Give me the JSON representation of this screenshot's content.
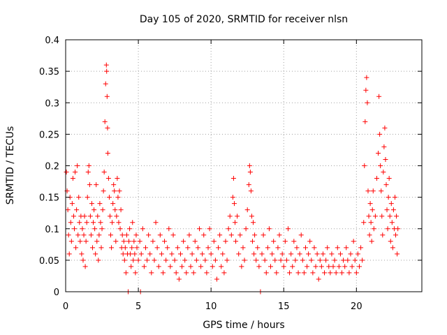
{
  "chart_data": {
    "type": "scatter",
    "title": "Day 105 of 2020, SRMTID for receiver nlsn",
    "xlabel": "GPS time / hours",
    "ylabel": "SRMTID / TECUs",
    "xlim": [
      0,
      24.5
    ],
    "ylim": [
      0,
      0.4
    ],
    "xticks": [
      0,
      5,
      10,
      15,
      20
    ],
    "xtick_labels": [
      "0",
      "5",
      "10",
      "15",
      "20"
    ],
    "yticks": [
      0,
      0.05,
      0.1,
      0.15,
      0.2,
      0.25,
      0.3,
      0.35,
      0.4
    ],
    "ytick_labels": [
      "0",
      "0.05",
      "0.1",
      "0.15",
      "0.2",
      "0.25",
      "0.3",
      "0.35",
      "0.4"
    ],
    "grid": true,
    "marker": "+",
    "color": "#ff0000",
    "series": [
      {
        "name": "SRMTID",
        "points": [
          [
            0.05,
            0.19
          ],
          [
            0.1,
            0.16
          ],
          [
            0.15,
            0.13
          ],
          [
            0.2,
            0.09
          ],
          [
            0.25,
            0.06
          ],
          [
            0.3,
            0.15
          ],
          [
            0.35,
            0.11
          ],
          [
            0.4,
            0.08
          ],
          [
            0.45,
            0.14
          ],
          [
            0.5,
            0.18
          ],
          [
            0.55,
            0.12
          ],
          [
            0.6,
            0.1
          ],
          [
            0.65,
            0.19
          ],
          [
            0.7,
            0.07
          ],
          [
            0.75,
            0.13
          ],
          [
            0.8,
            0.2
          ],
          [
            0.85,
            0.09
          ],
          [
            0.9,
            0.15
          ],
          [
            0.95,
            0.11
          ],
          [
            1.0,
            0.08
          ],
          [
            1.05,
            0.12
          ],
          [
            1.1,
            0.06
          ],
          [
            1.15,
            0.1
          ],
          [
            1.2,
            0.05
          ],
          [
            1.25,
            0.09
          ],
          [
            1.3,
            0.12
          ],
          [
            1.35,
            0.04
          ],
          [
            1.4,
            0.08
          ],
          [
            1.45,
            0.11
          ],
          [
            1.5,
            0.15
          ],
          [
            1.55,
            0.19
          ],
          [
            1.6,
            0.2
          ],
          [
            1.65,
            0.17
          ],
          [
            1.7,
            0.12
          ],
          [
            1.75,
            0.09
          ],
          [
            1.8,
            0.14
          ],
          [
            1.85,
            0.07
          ],
          [
            1.9,
            0.11
          ],
          [
            1.95,
            0.13
          ],
          [
            2.0,
            0.1
          ],
          [
            2.05,
            0.06
          ],
          [
            2.1,
            0.17
          ],
          [
            2.15,
            0.08
          ],
          [
            2.2,
            0.12
          ],
          [
            2.25,
            0.05
          ],
          [
            2.3,
            0.09
          ],
          [
            2.35,
            0.14
          ],
          [
            2.4,
            0.11
          ],
          [
            2.45,
            0.07
          ],
          [
            2.5,
            0.1
          ],
          [
            2.55,
            0.13
          ],
          [
            2.6,
            0.16
          ],
          [
            2.65,
            0.19
          ],
          [
            2.7,
            0.27
          ],
          [
            2.75,
            0.33
          ],
          [
            2.8,
            0.36
          ],
          [
            2.82,
            0.35
          ],
          [
            2.85,
            0.31
          ],
          [
            2.88,
            0.26
          ],
          [
            2.9,
            0.22
          ],
          [
            2.95,
            0.18
          ],
          [
            3.0,
            0.15
          ],
          [
            3.05,
            0.12
          ],
          [
            3.1,
            0.09
          ],
          [
            3.15,
            0.07
          ],
          [
            3.2,
            0.11
          ],
          [
            3.25,
            0.14
          ],
          [
            3.3,
            0.17
          ],
          [
            3.35,
            0.16
          ],
          [
            3.4,
            0.13
          ],
          [
            3.45,
            0.08
          ],
          [
            3.5,
            0.12
          ],
          [
            3.55,
            0.18
          ],
          [
            3.6,
            0.15
          ],
          [
            3.65,
            0.11
          ],
          [
            3.7,
            0.16
          ],
          [
            3.75,
            0.1
          ],
          [
            3.8,
            0.13
          ],
          [
            3.85,
            0.07
          ],
          [
            3.9,
            0.09
          ],
          [
            3.95,
            0.06
          ],
          [
            4.0,
            0.08
          ],
          [
            4.05,
            0.05
          ],
          [
            4.1,
            0.07
          ],
          [
            4.15,
            0.03
          ],
          [
            4.2,
            0.09
          ],
          [
            4.25,
            0.06
          ],
          [
            4.3,
            0.0
          ],
          [
            4.35,
            0.08
          ],
          [
            4.4,
            0.1
          ],
          [
            4.45,
            0.06
          ],
          [
            4.5,
            0.04
          ],
          [
            4.55,
            0.07
          ],
          [
            4.6,
            0.11
          ],
          [
            4.65,
            0.05
          ],
          [
            4.7,
            0.08
          ],
          [
            4.75,
            0.06
          ],
          [
            4.8,
            0.03
          ],
          [
            4.85,
            0.09
          ],
          [
            4.9,
            0.07
          ],
          [
            5.0,
            0.05
          ],
          [
            5.1,
            0.08
          ],
          [
            5.15,
            0.0
          ],
          [
            5.2,
            0.06
          ],
          [
            5.3,
            0.1
          ],
          [
            5.4,
            0.04
          ],
          [
            5.5,
            0.07
          ],
          [
            5.6,
            0.05
          ],
          [
            5.7,
            0.09
          ],
          [
            5.8,
            0.06
          ],
          [
            5.9,
            0.03
          ],
          [
            6.0,
            0.08
          ],
          [
            6.1,
            0.05
          ],
          [
            6.2,
            0.11
          ],
          [
            6.3,
            0.07
          ],
          [
            6.4,
            0.04
          ],
          [
            6.5,
            0.09
          ],
          [
            6.6,
            0.06
          ],
          [
            6.7,
            0.03
          ],
          [
            6.8,
            0.08
          ],
          [
            6.9,
            0.05
          ],
          [
            7.0,
            0.07
          ],
          [
            7.1,
            0.1
          ],
          [
            7.2,
            0.04
          ],
          [
            7.3,
            0.06
          ],
          [
            7.4,
            0.09
          ],
          [
            7.5,
            0.05
          ],
          [
            7.6,
            0.03
          ],
          [
            7.7,
            0.07
          ],
          [
            7.8,
            0.02
          ],
          [
            7.9,
            0.06
          ],
          [
            8.0,
            0.04
          ],
          [
            8.1,
            0.08
          ],
          [
            8.2,
            0.05
          ],
          [
            8.3,
            0.03
          ],
          [
            8.4,
            0.07
          ],
          [
            8.5,
            0.09
          ],
          [
            8.6,
            0.04
          ],
          [
            8.7,
            0.06
          ],
          [
            8.8,
            0.03
          ],
          [
            8.9,
            0.08
          ],
          [
            9.0,
            0.05
          ],
          [
            9.1,
            0.07
          ],
          [
            9.2,
            0.1
          ],
          [
            9.3,
            0.04
          ],
          [
            9.4,
            0.06
          ],
          [
            9.5,
            0.09
          ],
          [
            9.6,
            0.05
          ],
          [
            9.7,
            0.03
          ],
          [
            9.8,
            0.07
          ],
          [
            9.9,
            0.1
          ],
          [
            10.0,
            0.06
          ],
          [
            10.1,
            0.04
          ],
          [
            10.2,
            0.08
          ],
          [
            10.3,
            0.05
          ],
          [
            10.4,
            0.02
          ],
          [
            10.5,
            0.07
          ],
          [
            10.6,
            0.09
          ],
          [
            10.7,
            0.04
          ],
          [
            10.8,
            0.06
          ],
          [
            10.9,
            0.03
          ],
          [
            11.0,
            0.08
          ],
          [
            11.1,
            0.05
          ],
          [
            11.2,
            0.1
          ],
          [
            11.3,
            0.12
          ],
          [
            11.4,
            0.09
          ],
          [
            11.5,
            0.15
          ],
          [
            11.55,
            0.18
          ],
          [
            11.6,
            0.14
          ],
          [
            11.65,
            0.11
          ],
          [
            11.7,
            0.08
          ],
          [
            11.8,
            0.12
          ],
          [
            11.9,
            0.06
          ],
          [
            12.0,
            0.09
          ],
          [
            12.1,
            0.04
          ],
          [
            12.2,
            0.07
          ],
          [
            12.3,
            0.05
          ],
          [
            12.4,
            0.1
          ],
          [
            12.5,
            0.13
          ],
          [
            12.6,
            0.17
          ],
          [
            12.65,
            0.2
          ],
          [
            12.7,
            0.19
          ],
          [
            12.75,
            0.16
          ],
          [
            12.8,
            0.12
          ],
          [
            12.85,
            0.08
          ],
          [
            12.9,
            0.11
          ],
          [
            12.95,
            0.06
          ],
          [
            13.0,
            0.09
          ],
          [
            13.1,
            0.05
          ],
          [
            13.2,
            0.07
          ],
          [
            13.3,
            0.04
          ],
          [
            13.4,
            0.0
          ],
          [
            13.5,
            0.06
          ],
          [
            13.6,
            0.09
          ],
          [
            13.7,
            0.05
          ],
          [
            13.8,
            0.03
          ],
          [
            13.9,
            0.07
          ],
          [
            14.0,
            0.1
          ],
          [
            14.1,
            0.04
          ],
          [
            14.2,
            0.06
          ],
          [
            14.3,
            0.08
          ],
          [
            14.4,
            0.05
          ],
          [
            14.5,
            0.03
          ],
          [
            14.6,
            0.07
          ],
          [
            14.7,
            0.09
          ],
          [
            14.8,
            0.05
          ],
          [
            14.9,
            0.06
          ],
          [
            15.0,
            0.04
          ],
          [
            15.1,
            0.08
          ],
          [
            15.2,
            0.05
          ],
          [
            15.3,
            0.1
          ],
          [
            15.4,
            0.03
          ],
          [
            15.5,
            0.06
          ],
          [
            15.6,
            0.04
          ],
          [
            15.7,
            0.08
          ],
          [
            15.8,
            0.05
          ],
          [
            15.9,
            0.07
          ],
          [
            16.0,
            0.03
          ],
          [
            16.1,
            0.06
          ],
          [
            16.2,
            0.09
          ],
          [
            16.3,
            0.05
          ],
          [
            16.4,
            0.03
          ],
          [
            16.5,
            0.07
          ],
          [
            16.6,
            0.04
          ],
          [
            16.7,
            0.06
          ],
          [
            16.8,
            0.08
          ],
          [
            16.9,
            0.05
          ],
          [
            17.0,
            0.03
          ],
          [
            17.1,
            0.07
          ],
          [
            17.2,
            0.04
          ],
          [
            17.3,
            0.06
          ],
          [
            17.4,
            0.02
          ],
          [
            17.5,
            0.05
          ],
          [
            17.6,
            0.04
          ],
          [
            17.7,
            0.06
          ],
          [
            17.8,
            0.03
          ],
          [
            17.9,
            0.05
          ],
          [
            18.0,
            0.07
          ],
          [
            18.1,
            0.04
          ],
          [
            18.2,
            0.03
          ],
          [
            18.3,
            0.06
          ],
          [
            18.4,
            0.04
          ],
          [
            18.5,
            0.05
          ],
          [
            18.6,
            0.03
          ],
          [
            18.7,
            0.07
          ],
          [
            18.8,
            0.04
          ],
          [
            18.9,
            0.06
          ],
          [
            19.0,
            0.03
          ],
          [
            19.1,
            0.05
          ],
          [
            19.2,
            0.04
          ],
          [
            19.3,
            0.07
          ],
          [
            19.4,
            0.05
          ],
          [
            19.5,
            0.03
          ],
          [
            19.6,
            0.06
          ],
          [
            19.7,
            0.04
          ],
          [
            19.8,
            0.08
          ],
          [
            19.9,
            0.05
          ],
          [
            20.0,
            0.03
          ],
          [
            20.1,
            0.06
          ],
          [
            20.2,
            0.04
          ],
          [
            20.3,
            0.07
          ],
          [
            20.4,
            0.05
          ],
          [
            20.5,
            0.11
          ],
          [
            20.55,
            0.2
          ],
          [
            20.6,
            0.27
          ],
          [
            20.65,
            0.32
          ],
          [
            20.7,
            0.34
          ],
          [
            20.75,
            0.3
          ],
          [
            20.8,
            0.16
          ],
          [
            20.85,
            0.12
          ],
          [
            20.9,
            0.09
          ],
          [
            20.95,
            0.14
          ],
          [
            21.0,
            0.11
          ],
          [
            21.05,
            0.08
          ],
          [
            21.1,
            0.13
          ],
          [
            21.15,
            0.16
          ],
          [
            21.2,
            0.1
          ],
          [
            21.3,
            0.12
          ],
          [
            21.4,
            0.18
          ],
          [
            21.5,
            0.22
          ],
          [
            21.55,
            0.31
          ],
          [
            21.6,
            0.25
          ],
          [
            21.65,
            0.2
          ],
          [
            21.7,
            0.16
          ],
          [
            21.75,
            0.12
          ],
          [
            21.8,
            0.09
          ],
          [
            21.85,
            0.19
          ],
          [
            21.9,
            0.23
          ],
          [
            21.95,
            0.26
          ],
          [
            22.0,
            0.21
          ],
          [
            22.05,
            0.17
          ],
          [
            22.1,
            0.13
          ],
          [
            22.15,
            0.1
          ],
          [
            22.2,
            0.15
          ],
          [
            22.25,
            0.18
          ],
          [
            22.3,
            0.12
          ],
          [
            22.35,
            0.08
          ],
          [
            22.4,
            0.14
          ],
          [
            22.45,
            0.11
          ],
          [
            22.5,
            0.07
          ],
          [
            22.55,
            0.13
          ],
          [
            22.6,
            0.1
          ],
          [
            22.65,
            0.15
          ],
          [
            22.7,
            0.09
          ],
          [
            22.75,
            0.12
          ],
          [
            22.8,
            0.06
          ],
          [
            22.85,
            0.1
          ]
        ]
      }
    ]
  }
}
